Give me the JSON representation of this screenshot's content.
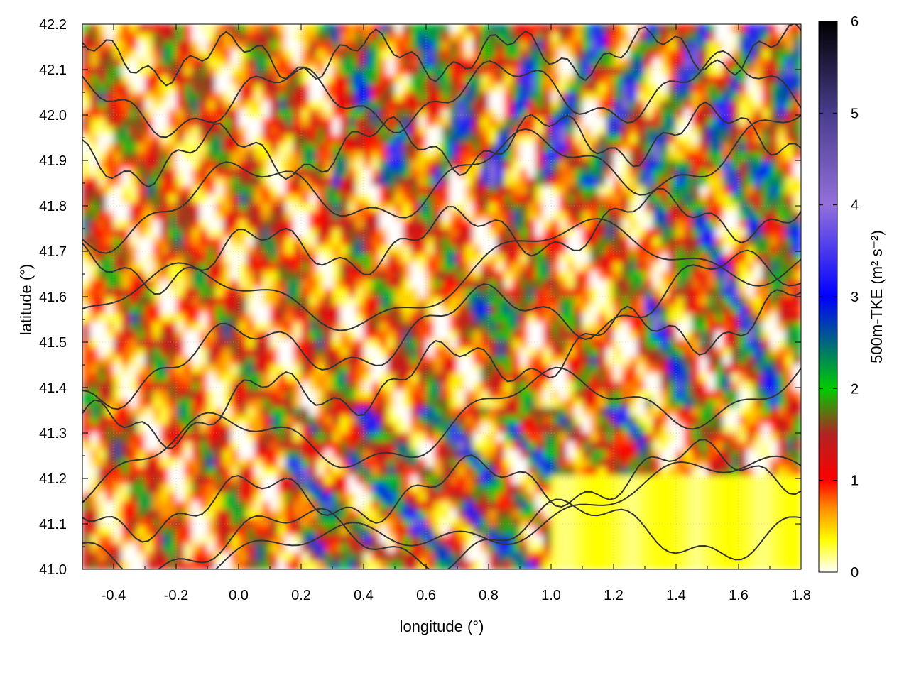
{
  "chart_data": {
    "type": "heatmap",
    "title": "",
    "xlabel": "longitude (°)",
    "ylabel": "latitude (°)",
    "xlim": [
      -0.5,
      1.8
    ],
    "ylim": [
      41.0,
      42.2
    ],
    "x_ticks": [
      "-0.4",
      "-0.2",
      "0.0",
      "0.2",
      "0.4",
      "0.6",
      "0.8",
      "1.0",
      "1.2",
      "1.4",
      "1.6",
      "1.8"
    ],
    "y_ticks": [
      "41.0",
      "41.1",
      "41.2",
      "41.3",
      "41.4",
      "41.5",
      "41.6",
      "41.7",
      "41.8",
      "41.9",
      "42.0",
      "42.1",
      "42.2"
    ],
    "grid": true,
    "colorbar": {
      "label": "500m-TKE (m² s⁻²)",
      "range": [
        0,
        6
      ],
      "ticks": [
        "0",
        "1",
        "2",
        "3",
        "4",
        "5",
        "6"
      ],
      "colormap": [
        {
          "value": 0.0,
          "color": "#ffffff"
        },
        {
          "value": 0.35,
          "color": "#ffff00"
        },
        {
          "value": 0.7,
          "color": "#ff8c00"
        },
        {
          "value": 1.0,
          "color": "#ff0000"
        },
        {
          "value": 1.5,
          "color": "#b22222"
        },
        {
          "value": 2.0,
          "color": "#00cc00"
        },
        {
          "value": 3.0,
          "color": "#0000ff"
        },
        {
          "value": 4.0,
          "color": "#9370db"
        },
        {
          "value": 5.0,
          "color": "#483d8b"
        },
        {
          "value": 6.0,
          "color": "#000000"
        }
      ]
    },
    "contours": "terrain elevation contour lines (dark grey)"
  }
}
